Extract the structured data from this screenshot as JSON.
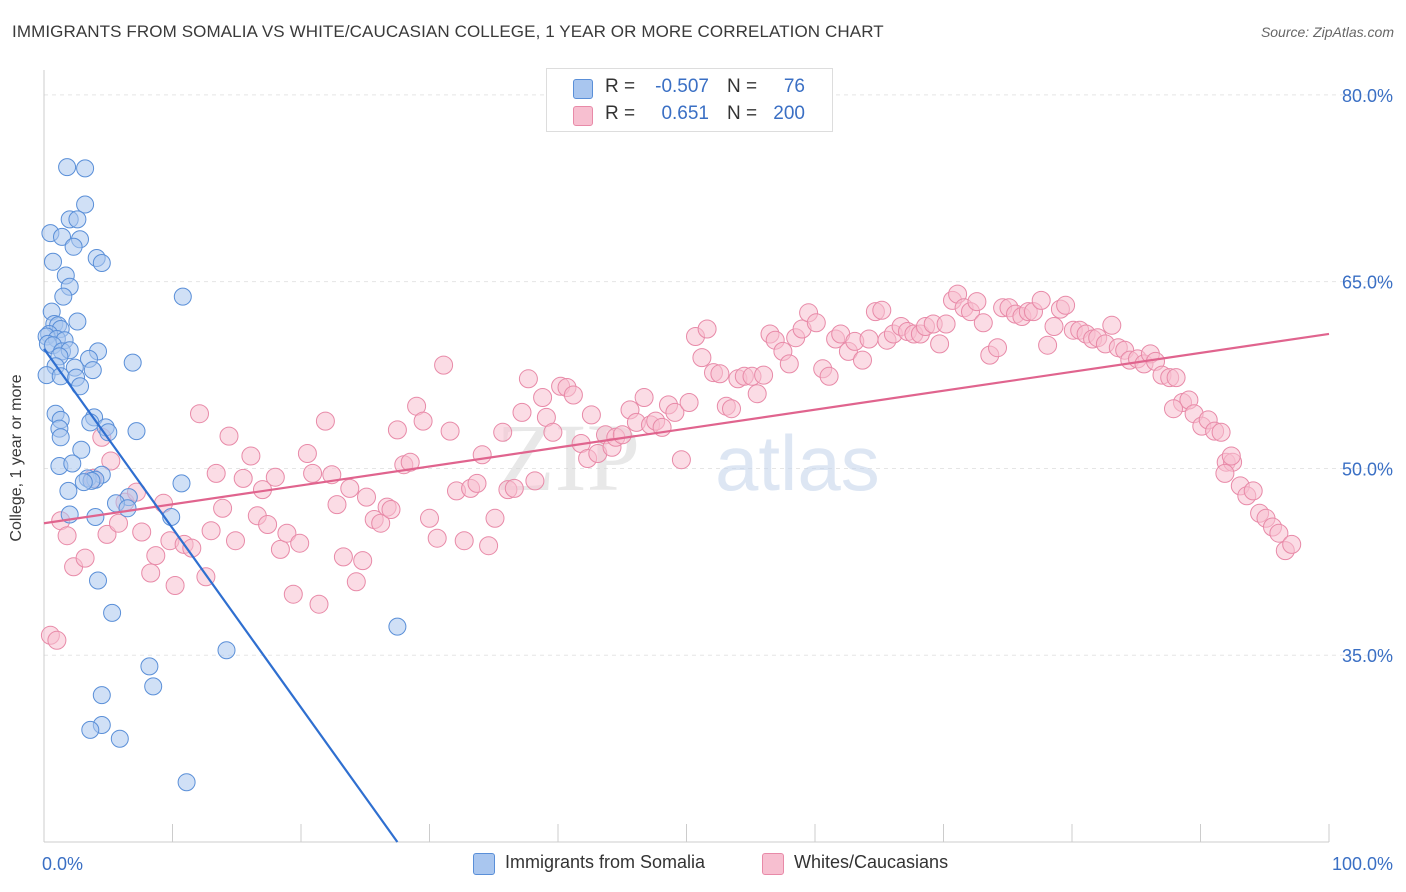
{
  "title": "IMMIGRANTS FROM SOMALIA VS WHITE/CAUCASIAN COLLEGE, 1 YEAR OR MORE CORRELATION CHART",
  "source": "Source: ZipAtlas.com",
  "watermark": {
    "zip": "ZIP",
    "atlas": "atlas"
  },
  "legend": {
    "r_label": "R =",
    "n_label": "N =",
    "rows": [
      {
        "r": "-0.507",
        "n": "76"
      },
      {
        "r": "0.651",
        "n": "200"
      }
    ]
  },
  "colors": {
    "blue_fill": "#a9c6ef",
    "blue_stroke": "#5a8fd8",
    "blue_line": "#2f6fd0",
    "pink_fill": "#f7bfd0",
    "pink_stroke": "#e88aa8",
    "pink_line": "#e0648e",
    "tick_label": "#3a6fc4",
    "grid": "#e5e5e5"
  },
  "chart_data": {
    "type": "scatter",
    "title": "IMMIGRANTS FROM SOMALIA VS WHITE/CAUCASIAN COLLEGE, 1 YEAR OR MORE CORRELATION CHART",
    "xlabel": "",
    "ylabel": "College, 1 year or more",
    "xlim": [
      0,
      100
    ],
    "ylim": [
      20,
      82
    ],
    "x_tick_labels": [
      {
        "value": 0,
        "label": "0.0%"
      },
      {
        "value": 100,
        "label": "100.0%"
      }
    ],
    "y_tick_labels": [
      {
        "value": 80,
        "label": "80.0%"
      },
      {
        "value": 65,
        "label": "65.0%"
      },
      {
        "value": 50,
        "label": "50.0%"
      },
      {
        "value": 35,
        "label": "35.0%"
      }
    ],
    "series": [
      {
        "name": "Immigrants from Somalia",
        "color": "blue",
        "trend": {
          "x": [
            0,
            27.5
          ],
          "y": [
            59.6,
            20.0
          ]
        },
        "points": [
          [
            1.8,
            74.2
          ],
          [
            3.2,
            74.1
          ],
          [
            3.2,
            71.2
          ],
          [
            2.0,
            70.0
          ],
          [
            2.6,
            70.0
          ],
          [
            0.5,
            68.9
          ],
          [
            1.4,
            68.6
          ],
          [
            2.8,
            68.4
          ],
          [
            2.3,
            67.8
          ],
          [
            4.1,
            66.9
          ],
          [
            0.7,
            66.6
          ],
          [
            4.5,
            66.5
          ],
          [
            1.7,
            65.5
          ],
          [
            2.0,
            64.6
          ],
          [
            1.5,
            63.8
          ],
          [
            10.8,
            63.8
          ],
          [
            0.6,
            62.6
          ],
          [
            0.8,
            61.6
          ],
          [
            2.6,
            61.8
          ],
          [
            1.1,
            61.5
          ],
          [
            1.3,
            61.2
          ],
          [
            0.4,
            60.8
          ],
          [
            0.2,
            60.6
          ],
          [
            1.0,
            60.4
          ],
          [
            1.6,
            60.3
          ],
          [
            0.3,
            60.0
          ],
          [
            0.7,
            59.9
          ],
          [
            1.4,
            59.4
          ],
          [
            2.0,
            59.5
          ],
          [
            4.2,
            59.4
          ],
          [
            1.2,
            59.0
          ],
          [
            3.5,
            58.8
          ],
          [
            6.9,
            58.5
          ],
          [
            0.9,
            58.2
          ],
          [
            2.4,
            58.1
          ],
          [
            3.8,
            57.9
          ],
          [
            0.2,
            57.5
          ],
          [
            1.3,
            57.4
          ],
          [
            2.5,
            57.3
          ],
          [
            2.8,
            56.6
          ],
          [
            0.9,
            54.4
          ],
          [
            3.9,
            54.1
          ],
          [
            1.3,
            53.9
          ],
          [
            3.6,
            53.7
          ],
          [
            4.8,
            53.3
          ],
          [
            1.2,
            53.2
          ],
          [
            7.2,
            53.0
          ],
          [
            5.0,
            52.9
          ],
          [
            1.3,
            52.5
          ],
          [
            2.9,
            51.5
          ],
          [
            1.2,
            50.2
          ],
          [
            4.5,
            49.5
          ],
          [
            3.4,
            49.2
          ],
          [
            4.0,
            49.1
          ],
          [
            3.7,
            49.0
          ],
          [
            3.1,
            48.9
          ],
          [
            10.7,
            48.8
          ],
          [
            1.9,
            48.2
          ],
          [
            6.6,
            47.7
          ],
          [
            5.6,
            47.2
          ],
          [
            2.0,
            46.3
          ],
          [
            4.0,
            46.1
          ],
          [
            9.9,
            46.1
          ],
          [
            4.2,
            41.0
          ],
          [
            5.3,
            38.4
          ],
          [
            27.5,
            37.3
          ],
          [
            14.2,
            35.4
          ],
          [
            8.2,
            34.1
          ],
          [
            8.5,
            32.5
          ],
          [
            4.5,
            31.8
          ],
          [
            4.5,
            29.4
          ],
          [
            3.6,
            29.0
          ],
          [
            5.9,
            28.3
          ],
          [
            11.1,
            24.8
          ],
          [
            6.5,
            46.8
          ],
          [
            2.2,
            50.4
          ]
        ]
      },
      {
        "name": "Whites/Caucasians",
        "color": "pink",
        "trend": {
          "x": [
            0,
            100
          ],
          "y": [
            45.6,
            60.8
          ]
        },
        "points": [
          [
            0.5,
            36.6
          ],
          [
            1.0,
            36.2
          ],
          [
            1.3,
            45.8
          ],
          [
            1.8,
            44.6
          ],
          [
            2.3,
            42.1
          ],
          [
            3.2,
            42.8
          ],
          [
            3.8,
            49.2
          ],
          [
            4.5,
            52.5
          ],
          [
            4.9,
            44.7
          ],
          [
            5.2,
            50.6
          ],
          [
            5.8,
            45.6
          ],
          [
            6.3,
            47.3
          ],
          [
            7.2,
            48.1
          ],
          [
            7.6,
            44.9
          ],
          [
            8.3,
            41.6
          ],
          [
            8.7,
            43.0
          ],
          [
            9.3,
            47.2
          ],
          [
            9.8,
            44.2
          ],
          [
            10.2,
            40.6
          ],
          [
            10.9,
            43.9
          ],
          [
            11.5,
            43.6
          ],
          [
            12.1,
            54.4
          ],
          [
            12.6,
            41.3
          ],
          [
            13.0,
            45.0
          ],
          [
            13.4,
            49.6
          ],
          [
            13.9,
            46.8
          ],
          [
            14.4,
            52.6
          ],
          [
            14.9,
            44.2
          ],
          [
            15.5,
            49.2
          ],
          [
            16.1,
            51.0
          ],
          [
            16.6,
            46.2
          ],
          [
            17.0,
            48.3
          ],
          [
            17.4,
            45.5
          ],
          [
            18.0,
            49.3
          ],
          [
            18.4,
            43.5
          ],
          [
            18.9,
            44.8
          ],
          [
            19.4,
            39.9
          ],
          [
            19.9,
            44.0
          ],
          [
            20.5,
            51.2
          ],
          [
            20.9,
            49.6
          ],
          [
            21.4,
            39.1
          ],
          [
            21.9,
            53.8
          ],
          [
            22.4,
            49.5
          ],
          [
            22.8,
            47.1
          ],
          [
            23.3,
            42.9
          ],
          [
            23.8,
            48.4
          ],
          [
            24.3,
            40.9
          ],
          [
            24.8,
            42.6
          ],
          [
            25.1,
            47.7
          ],
          [
            25.7,
            45.9
          ],
          [
            26.2,
            45.6
          ],
          [
            26.7,
            46.9
          ],
          [
            27.0,
            46.7
          ],
          [
            27.5,
            53.1
          ],
          [
            28.0,
            50.3
          ],
          [
            28.5,
            50.5
          ],
          [
            29.0,
            55.0
          ],
          [
            29.5,
            53.8
          ],
          [
            30.0,
            46.0
          ],
          [
            30.6,
            44.4
          ],
          [
            31.1,
            58.3
          ],
          [
            31.6,
            53.0
          ],
          [
            32.1,
            48.2
          ],
          [
            32.7,
            44.2
          ],
          [
            33.2,
            48.4
          ],
          [
            33.7,
            48.8
          ],
          [
            34.1,
            51.1
          ],
          [
            34.6,
            43.8
          ],
          [
            35.1,
            46.0
          ],
          [
            35.7,
            52.9
          ],
          [
            36.1,
            48.3
          ],
          [
            36.6,
            48.4
          ],
          [
            37.2,
            54.5
          ],
          [
            37.7,
            57.2
          ],
          [
            38.2,
            49.0
          ],
          [
            38.8,
            55.7
          ],
          [
            39.1,
            54.1
          ],
          [
            39.6,
            52.9
          ],
          [
            40.2,
            56.6
          ],
          [
            40.7,
            56.5
          ],
          [
            41.2,
            55.9
          ],
          [
            41.8,
            52.0
          ],
          [
            42.3,
            50.8
          ],
          [
            42.6,
            54.3
          ],
          [
            43.1,
            51.2
          ],
          [
            43.7,
            52.7
          ],
          [
            44.2,
            51.7
          ],
          [
            44.5,
            52.5
          ],
          [
            45.0,
            52.7
          ],
          [
            45.6,
            54.7
          ],
          [
            46.1,
            53.7
          ],
          [
            46.7,
            55.7
          ],
          [
            47.2,
            53.5
          ],
          [
            47.6,
            53.8
          ],
          [
            48.1,
            53.3
          ],
          [
            48.6,
            55.1
          ],
          [
            49.1,
            54.5
          ],
          [
            49.6,
            50.7
          ],
          [
            50.2,
            55.3
          ],
          [
            50.7,
            60.6
          ],
          [
            51.2,
            58.9
          ],
          [
            51.6,
            61.2
          ],
          [
            52.1,
            57.7
          ],
          [
            52.6,
            57.6
          ],
          [
            53.1,
            55.0
          ],
          [
            53.5,
            54.8
          ],
          [
            54.0,
            57.2
          ],
          [
            54.5,
            57.4
          ],
          [
            55.1,
            57.4
          ],
          [
            55.5,
            56.0
          ],
          [
            56.0,
            57.5
          ],
          [
            56.5,
            60.8
          ],
          [
            56.9,
            60.3
          ],
          [
            57.5,
            59.4
          ],
          [
            58.0,
            58.4
          ],
          [
            58.5,
            60.5
          ],
          [
            59.0,
            61.2
          ],
          [
            59.5,
            62.5
          ],
          [
            60.1,
            61.7
          ],
          [
            60.6,
            58.0
          ],
          [
            61.1,
            57.4
          ],
          [
            61.6,
            60.4
          ],
          [
            62.0,
            60.8
          ],
          [
            62.6,
            59.4
          ],
          [
            63.1,
            60.2
          ],
          [
            63.7,
            58.7
          ],
          [
            64.2,
            60.4
          ],
          [
            64.7,
            62.6
          ],
          [
            65.2,
            62.7
          ],
          [
            65.6,
            60.3
          ],
          [
            66.1,
            60.8
          ],
          [
            66.7,
            61.4
          ],
          [
            67.2,
            61.0
          ],
          [
            67.7,
            60.8
          ],
          [
            68.2,
            60.8
          ],
          [
            68.6,
            61.4
          ],
          [
            69.2,
            61.6
          ],
          [
            69.7,
            60.0
          ],
          [
            70.2,
            61.6
          ],
          [
            70.7,
            63.5
          ],
          [
            71.1,
            64.0
          ],
          [
            71.6,
            62.9
          ],
          [
            72.1,
            62.6
          ],
          [
            72.6,
            63.4
          ],
          [
            73.1,
            61.7
          ],
          [
            73.6,
            59.1
          ],
          [
            74.2,
            59.7
          ],
          [
            74.6,
            62.9
          ],
          [
            75.1,
            62.9
          ],
          [
            75.6,
            62.4
          ],
          [
            76.1,
            62.2
          ],
          [
            76.6,
            62.6
          ],
          [
            77.0,
            62.6
          ],
          [
            77.6,
            63.5
          ],
          [
            78.1,
            59.9
          ],
          [
            78.6,
            61.4
          ],
          [
            79.1,
            62.8
          ],
          [
            79.5,
            63.1
          ],
          [
            80.1,
            61.1
          ],
          [
            80.6,
            61.1
          ],
          [
            81.1,
            60.8
          ],
          [
            81.6,
            60.4
          ],
          [
            82.0,
            60.5
          ],
          [
            82.6,
            60.0
          ],
          [
            83.1,
            61.5
          ],
          [
            83.6,
            59.7
          ],
          [
            84.1,
            59.5
          ],
          [
            84.5,
            58.7
          ],
          [
            85.1,
            58.8
          ],
          [
            85.6,
            58.4
          ],
          [
            86.1,
            59.2
          ],
          [
            86.5,
            58.6
          ],
          [
            87.0,
            57.5
          ],
          [
            87.6,
            57.3
          ],
          [
            88.1,
            57.3
          ],
          [
            88.6,
            55.3
          ],
          [
            89.1,
            55.5
          ],
          [
            89.5,
            54.4
          ],
          [
            90.1,
            53.4
          ],
          [
            90.6,
            53.9
          ],
          [
            91.1,
            53.0
          ],
          [
            91.6,
            52.9
          ],
          [
            92.0,
            50.5
          ],
          [
            92.5,
            50.5
          ],
          [
            93.1,
            48.6
          ],
          [
            93.6,
            47.8
          ],
          [
            94.1,
            48.2
          ],
          [
            94.6,
            46.4
          ],
          [
            95.1,
            46.0
          ],
          [
            95.6,
            45.3
          ],
          [
            96.1,
            44.8
          ],
          [
            96.6,
            43.4
          ],
          [
            97.1,
            43.9
          ],
          [
            92.4,
            51.0
          ],
          [
            87.9,
            54.8
          ],
          [
            91.9,
            49.6
          ]
        ]
      }
    ]
  },
  "bottom_legend": [
    {
      "label": "Immigrants from Somalia"
    },
    {
      "label": "Whites/Caucasians"
    }
  ]
}
